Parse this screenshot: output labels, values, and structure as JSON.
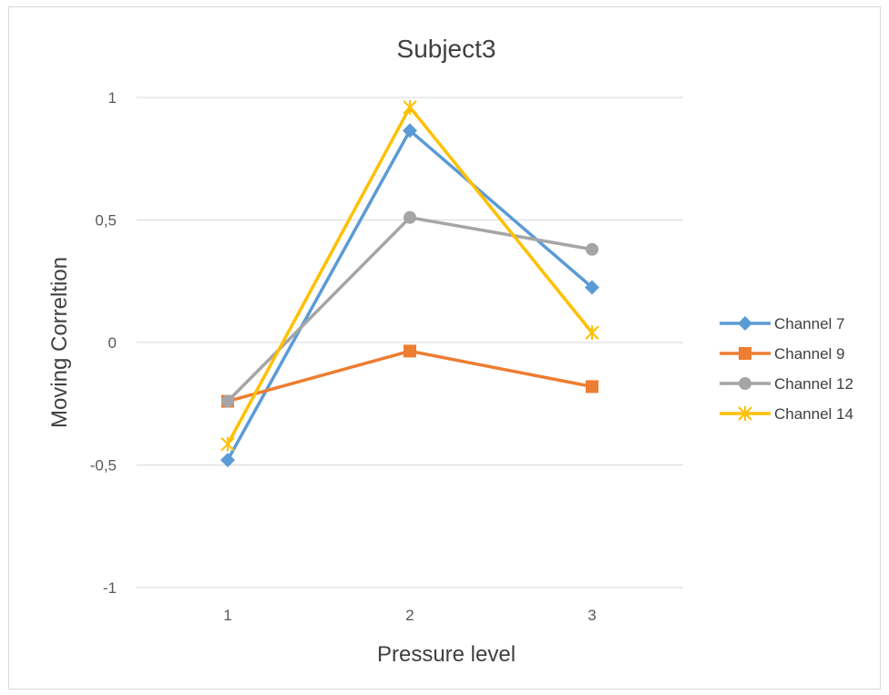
{
  "chart_data": {
    "type": "line",
    "title": "Subject3",
    "xlabel": "Pressure level",
    "ylabel": "Moving Correltion",
    "categories": [
      "1",
      "2",
      "3"
    ],
    "ylim": [
      -1,
      1
    ],
    "yticks": [
      1,
      0.5,
      0,
      -0.5,
      -1
    ],
    "ytick_labels": [
      "1",
      "0,5",
      "0",
      "-0,5",
      "-1"
    ],
    "grid": "horizontal",
    "legend_position": "right",
    "series": [
      {
        "name": "Channel 7",
        "color": "#5b9bd5",
        "marker": "diamond",
        "values": [
          -0.48,
          0.865,
          0.225
        ]
      },
      {
        "name": "Channel 9",
        "color": "#ed7d31",
        "marker": "square",
        "values": [
          -0.24,
          -0.035,
          -0.18
        ]
      },
      {
        "name": "Channel 12",
        "color": "#a5a5a5",
        "marker": "circle",
        "values": [
          -0.24,
          0.51,
          0.38
        ]
      },
      {
        "name": "Channel 14",
        "color": "#ffc000",
        "marker": "star",
        "values": [
          -0.415,
          0.96,
          0.04
        ]
      }
    ]
  }
}
